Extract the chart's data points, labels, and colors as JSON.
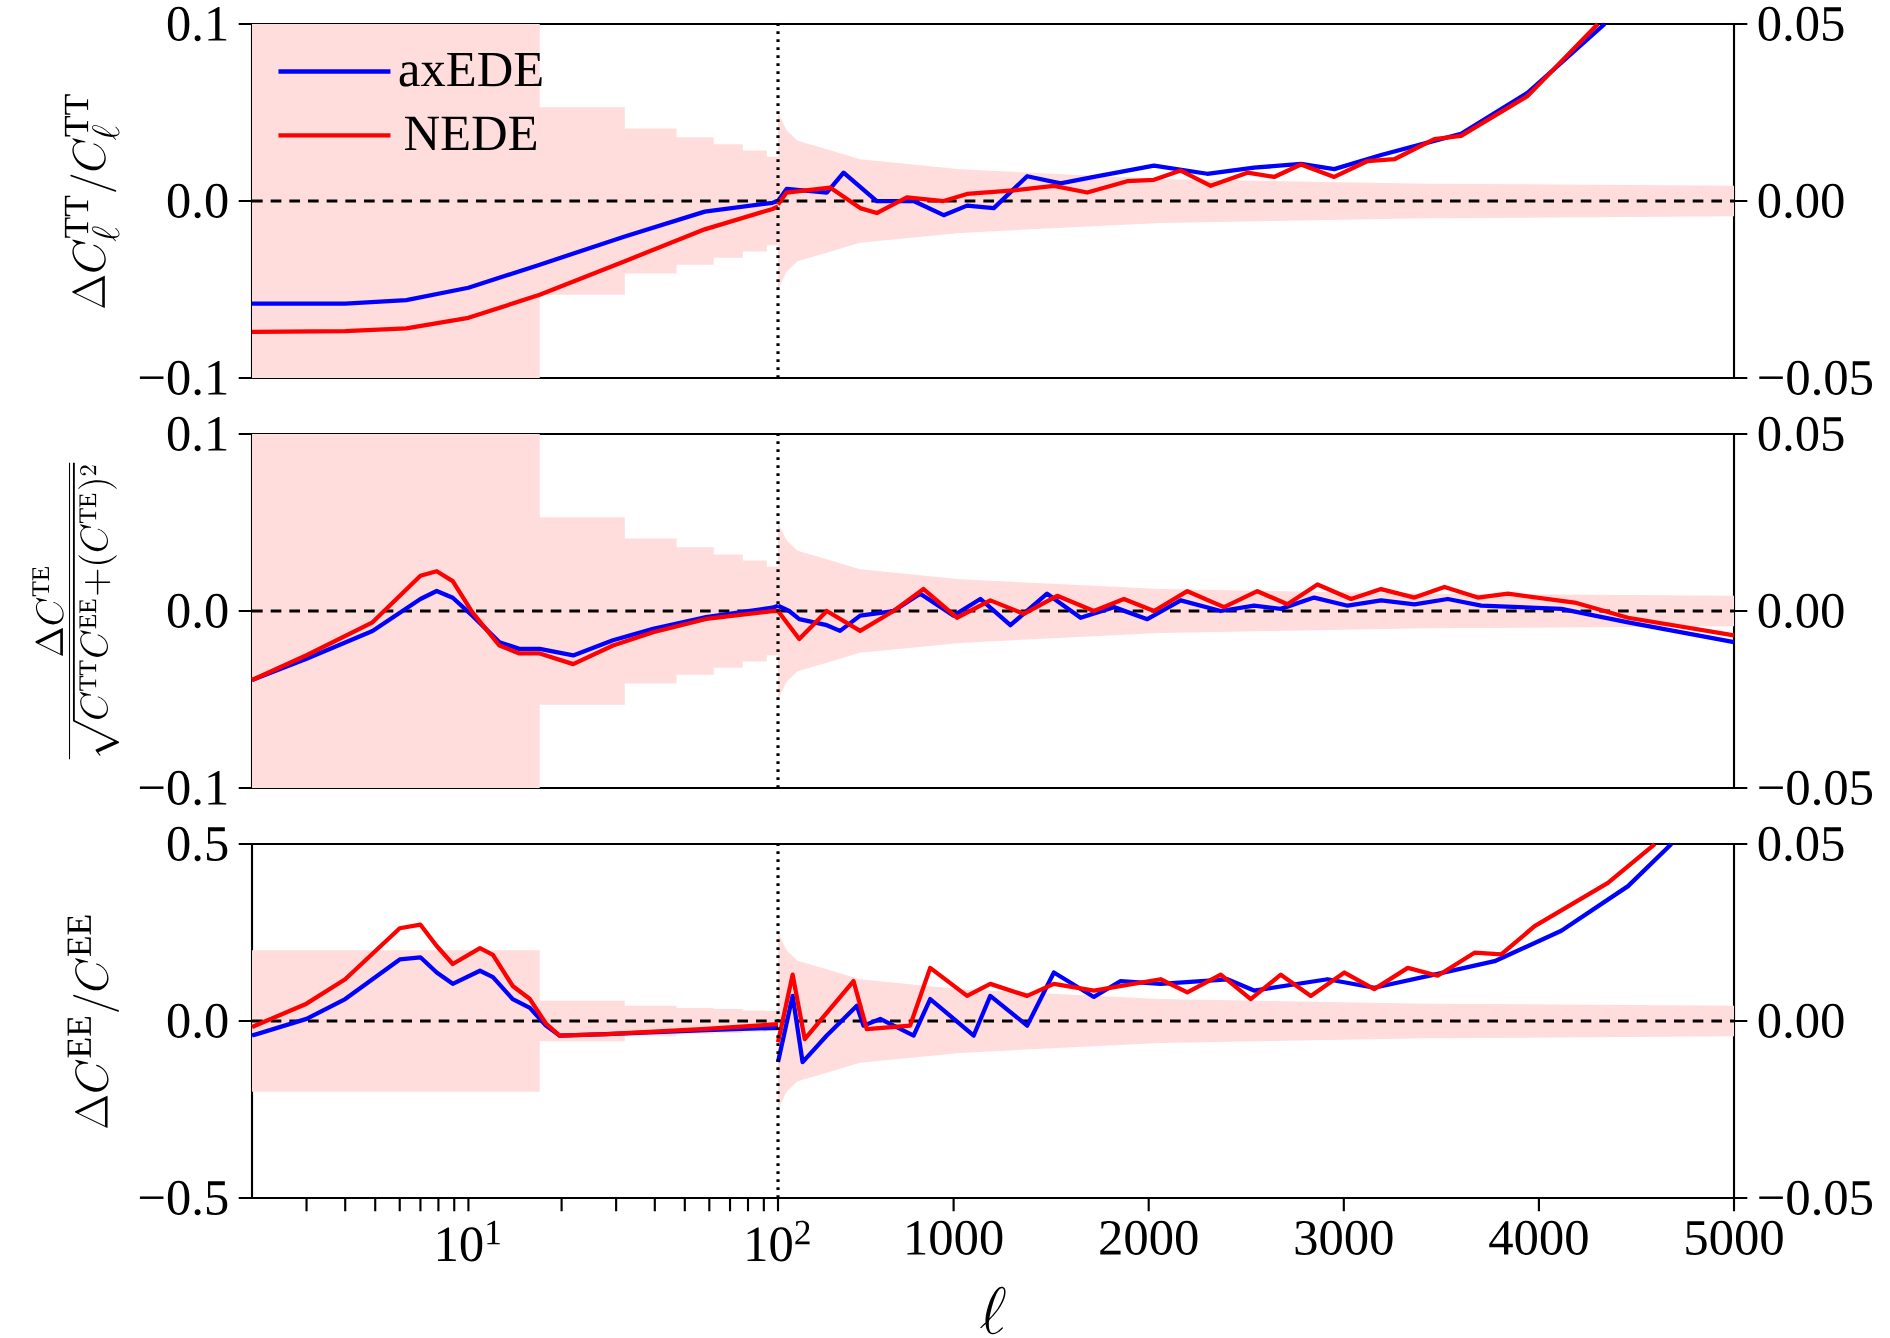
{
  "chart_data": [
    {
      "type": "line",
      "log": "x",
      "xlim": [
        2,
        100
      ],
      "ylim": [
        -0.1,
        0.1
      ],
      "yticks": [
        {
          "value": -0.1,
          "label": "−0.1"
        },
        {
          "value": 0,
          "label": "0.0"
        },
        {
          "value": 0.1,
          "label": "0.1"
        }
      ],
      "ylabel": "\\Delta C_\\ell^{\\mathrm{TT}}/C_\\ell^{\\mathrm{TT}}",
      "tick_labels": "y",
      "legend": "top left",
      "series": [
        {
          "color": "#000000",
          "line_style": "dashed",
          "x": [
            2,
            17,
            17,
            32,
            32,
            47,
            47,
            62,
            62,
            77,
            77,
            92,
            92,
            100
          ],
          "values": [
            0,
            0,
            0,
            0,
            0,
            0,
            0,
            0,
            0,
            0,
            0,
            0,
            0,
            0
          ],
          "lower": [
            -0.1,
            -0.1,
            -0.053,
            -0.053,
            -0.041,
            -0.041,
            -0.036,
            -0.036,
            -0.032,
            -0.032,
            -0.0285,
            -0.0285,
            -0.025,
            -0.025
          ],
          "upper": [
            0.1,
            0.1,
            0.053,
            0.053,
            0.041,
            0.041,
            0.036,
            0.036,
            0.032,
            0.032,
            0.0285,
            0.0285,
            0.025,
            0.025
          ]
        },
        {
          "name": "axEDE",
          "color": "#0000ff",
          "x": [
            2,
            4,
            6.3,
            10,
            17,
            32,
            58,
            96,
            100
          ],
          "values": [
            -0.058,
            -0.058,
            -0.056,
            -0.049,
            -0.036,
            -0.02,
            -0.006,
            -0.001,
            0
          ]
        },
        {
          "name": "NEDE",
          "color": "#ff0000",
          "x": [
            2,
            4,
            6.3,
            10,
            17,
            32,
            58,
            96,
            100
          ],
          "values": [
            -0.074,
            -0.0735,
            -0.072,
            -0.066,
            -0.053,
            -0.034,
            -0.016,
            -0.0045,
            -0.003
          ]
        }
      ]
    },
    {
      "type": "line",
      "xlim": [
        100,
        5000
      ],
      "y2lim": [
        -0.05,
        0.05
      ],
      "y2ticks": [
        {
          "value": -0.05,
          "label": "−0.05"
        },
        {
          "value": 0,
          "label": "0.00"
        },
        {
          "value": 0.05,
          "label": "0.05"
        }
      ],
      "tick_labels": "y",
      "ref_lines": [
        {
          "axis": "x",
          "value": 100,
          "line_style": "dotted",
          "color": "#000000"
        }
      ],
      "series": [
        {
          "axis": "y2",
          "color": "#000000",
          "line_style": "dashed",
          "x": [
            100,
            144,
            200,
            350,
            520,
            1034,
            2061,
            3430,
            5000
          ],
          "values": [
            0,
            0,
            0,
            0,
            0,
            0,
            0,
            0,
            0
          ],
          "lower": [
            -0.025,
            -0.02,
            -0.017,
            -0.0146,
            -0.0118,
            -0.009,
            -0.0062,
            -0.0049,
            -0.0043
          ],
          "upper": [
            0.025,
            0.02,
            0.017,
            0.0146,
            0.0118,
            0.009,
            0.0062,
            0.0049,
            0.0043
          ]
        },
        {
          "axis": "y2",
          "color": "#0000ff",
          "x": [
            100,
            144,
            350,
            436,
            606,
            795,
            949,
            1069,
            1206,
            1377,
            1548,
            1719,
            2027,
            2300,
            2540,
            2780,
            2951,
            3191,
            3430,
            3601,
            3943,
            4337
          ],
          "values": [
            0,
            0.0034,
            0.0024,
            0.008,
            0,
            0,
            -0.004,
            -0.0013,
            -0.002,
            0.007,
            0.005,
            0.0068,
            0.01,
            0.0077,
            0.0094,
            0.0105,
            0.009,
            0.013,
            0.0165,
            0.019,
            0.0306,
            0.05
          ]
        },
        {
          "axis": "y2",
          "color": "#ff0000",
          "x": [
            100,
            144,
            367,
            521,
            606,
            760,
            949,
            1069,
            1308,
            1514,
            1685,
            1890,
            2027,
            2164,
            2318,
            2506,
            2643,
            2780,
            2951,
            3122,
            3259,
            3464,
            3601,
            3943,
            4302
          ],
          "values": [
            -0.001,
            0.0024,
            0.0038,
            -0.002,
            -0.0034,
            0.001,
            0,
            0.002,
            0.003,
            0.0043,
            0.0024,
            0.0056,
            0.006,
            0.0086,
            0.0043,
            0.008,
            0.0068,
            0.0103,
            0.0068,
            0.0113,
            0.0118,
            0.0175,
            0.0184,
            0.0297,
            0.05
          ]
        }
      ]
    },
    {
      "type": "line",
      "log": "x",
      "xlim": [
        2,
        100
      ],
      "ylim": [
        -0.1,
        0.1
      ],
      "yticks": [
        {
          "value": -0.1,
          "label": "−0.1"
        },
        {
          "value": 0,
          "label": "0.0"
        },
        {
          "value": 0.1,
          "label": "0.1"
        }
      ],
      "ylabel": "\\frac{\\Delta C^{\\mathrm{TE}}}{\\sqrt{C^{\\mathrm{TT}}C^{\\mathrm{EE}}+(C^{\\mathrm{TE}})^2}}",
      "tick_labels": "y",
      "series": [
        {
          "color": "#000000",
          "line_style": "dashed",
          "x": [
            2,
            17,
            17,
            32,
            32,
            47,
            47,
            62,
            62,
            77,
            77,
            92,
            92,
            100
          ],
          "values": [
            0,
            0,
            0,
            0,
            0,
            0,
            0,
            0,
            0,
            0,
            0,
            0,
            0,
            0
          ],
          "lower": [
            -0.1,
            -0.1,
            -0.053,
            -0.053,
            -0.041,
            -0.041,
            -0.036,
            -0.036,
            -0.032,
            -0.032,
            -0.0285,
            -0.0285,
            -0.025,
            -0.025
          ],
          "upper": [
            0.1,
            0.1,
            0.053,
            0.053,
            0.041,
            0.041,
            0.036,
            0.036,
            0.032,
            0.032,
            0.0285,
            0.0285,
            0.025,
            0.025
          ]
        },
        {
          "color": "#0000ff",
          "x": [
            2,
            3,
            4.9,
            7,
            7.9,
            8.9,
            10.3,
            12.6,
            14.6,
            17,
            21.8,
            29.3,
            39.5,
            58.6,
            96,
            100
          ],
          "values": [
            -0.039,
            -0.027,
            -0.0113,
            0.0068,
            0.0113,
            0.0075,
            -0.0026,
            -0.0176,
            -0.0214,
            -0.0214,
            -0.0251,
            -0.0165,
            -0.0101,
            -0.0034,
            0.0019,
            0.003
          ]
        },
        {
          "color": "#ff0000",
          "x": [
            2,
            3,
            4.9,
            7,
            7.9,
            8.9,
            10.3,
            12.6,
            14.6,
            17,
            21.8,
            29.3,
            39.5,
            58.6,
            96,
            100
          ],
          "values": [
            -0.039,
            -0.025,
            -0.0064,
            0.0199,
            0.0225,
            0.0169,
            -0.0008,
            -0.0195,
            -0.024,
            -0.024,
            -0.03,
            -0.0195,
            -0.012,
            -0.0045,
            0,
            0
          ]
        }
      ]
    },
    {
      "type": "line",
      "xlim": [
        100,
        5000
      ],
      "y2lim": [
        -0.05,
        0.05
      ],
      "y2ticks": [
        {
          "value": -0.05,
          "label": "−0.05"
        },
        {
          "value": 0,
          "label": "0.00"
        },
        {
          "value": 0.05,
          "label": "0.05"
        }
      ],
      "tick_labels": "y",
      "ref_lines": [
        {
          "axis": "x",
          "value": 100,
          "line_style": "dotted",
          "color": "#000000"
        }
      ],
      "series": [
        {
          "axis": "y2",
          "color": "#000000",
          "line_style": "dashed",
          "x": [
            100,
            144,
            200,
            350,
            520,
            1034,
            2061,
            3430,
            5000
          ],
          "values": [
            0,
            0,
            0,
            0,
            0,
            0,
            0,
            0,
            0
          ],
          "lower": [
            -0.025,
            -0.02,
            -0.017,
            -0.0146,
            -0.0118,
            -0.009,
            -0.0062,
            -0.0049,
            -0.0043
          ],
          "upper": [
            0.025,
            0.02,
            0.017,
            0.0146,
            0.0118,
            0.009,
            0.0062,
            0.0049,
            0.0043
          ]
        },
        {
          "axis": "y2",
          "color": "#0000ff",
          "x": [
            100,
            157,
            209,
            350,
            418,
            521,
            692,
            829,
            1000,
            1137,
            1291,
            1479,
            1651,
            1822,
            1993,
            2164,
            2369,
            2540,
            2677,
            2848,
            3020,
            3191,
            3362,
            3533,
            3704,
            4115,
            4457,
            5000
          ],
          "values": [
            0.0015,
            0,
            -0.0023,
            -0.004,
            -0.0056,
            -0.0013,
            0,
            0.0049,
            -0.0013,
            0.0034,
            -0.004,
            0.0049,
            -0.0019,
            0.0011,
            -0.0023,
            0.003,
            0,
            0.0015,
            0.0006,
            0.0038,
            0.0015,
            0.003,
            0.0019,
            0.0034,
            0.0015,
            0.0006,
            -0.0032,
            -0.0088
          ]
        },
        {
          "axis": "y2",
          "color": "#ff0000",
          "x": [
            100,
            209,
            350,
            521,
            692,
            846,
            1017,
            1188,
            1360,
            1531,
            1719,
            1873,
            2027,
            2198,
            2386,
            2557,
            2711,
            2865,
            3037,
            3191,
            3362,
            3516,
            3687,
            3841,
            4183,
            4457,
            5000
          ],
          "values": [
            0,
            -0.0079,
            0,
            -0.0056,
            0,
            0.0062,
            -0.0019,
            0.003,
            -0.0008,
            0.0043,
            0,
            0.0034,
            0,
            0.0056,
            0.0011,
            0.0056,
            0.0019,
            0.0075,
            0.0034,
            0.0062,
            0.0038,
            0.0068,
            0.0038,
            0.0049,
            0.0024,
            -0.0019,
            -0.0069
          ]
        }
      ]
    },
    {
      "type": "line",
      "log": "x",
      "xlim": [
        2,
        100
      ],
      "ylim": [
        -0.5,
        0.5
      ],
      "yticks": [
        {
          "value": -0.5,
          "label": "−0.5"
        },
        {
          "value": 0,
          "label": "0.0"
        },
        {
          "value": 0.5,
          "label": "0.5"
        }
      ],
      "ylabel": "\\Delta C^{\\mathrm{EE}}/C^{\\mathrm{EE}}",
      "xticks": [
        {
          "value": 3,
          "label": null
        },
        {
          "value": 4,
          "label": null
        },
        {
          "value": 5,
          "label": null
        },
        {
          "value": 6,
          "label": null
        },
        {
          "value": 7,
          "label": null
        },
        {
          "value": 8,
          "label": null
        },
        {
          "value": 9,
          "label": null
        },
        {
          "value": 10,
          "label": "10$^{1}$"
        },
        {
          "value": 20,
          "label": null
        },
        {
          "value": 30,
          "label": null
        },
        {
          "value": 40,
          "label": null
        },
        {
          "value": 50,
          "label": null
        },
        {
          "value": 60,
          "label": null
        },
        {
          "value": 70,
          "label": null
        },
        {
          "value": 80,
          "label": null
        },
        {
          "value": 90,
          "label": null
        },
        {
          "value": 100,
          "label": "10$^{2}$"
        }
      ],
      "series": [
        {
          "color": "#000000",
          "line_style": "dashed",
          "x": [
            2,
            17,
            17,
            32,
            32,
            47,
            47,
            62,
            62,
            77,
            77,
            92,
            92,
            100
          ],
          "values": [
            0,
            0,
            0,
            0,
            0,
            0,
            0,
            0,
            0,
            0,
            0,
            0,
            0,
            0
          ],
          "lower": [
            -0.2,
            -0.2,
            -0.057,
            -0.057,
            -0.043,
            -0.043,
            -0.037,
            -0.037,
            -0.034,
            -0.034,
            -0.03,
            -0.03,
            -0.028,
            -0.028
          ],
          "upper": [
            0.2,
            0.2,
            0.057,
            0.057,
            0.043,
            0.043,
            0.037,
            0.037,
            0.034,
            0.034,
            0.03,
            0.03,
            0.028,
            0.028
          ]
        },
        {
          "color": "#0000ff",
          "x": [
            2,
            3,
            4,
            6,
            7,
            7.9,
            8.9,
            10.9,
            12,
            13.9,
            15.8,
            17.8,
            19.7,
            27.9,
            58.6,
            100
          ],
          "values": [
            -0.041,
            0.006,
            0.062,
            0.174,
            0.18,
            0.137,
            0.105,
            0.142,
            0.124,
            0.062,
            0.037,
            -0.013,
            -0.041,
            -0.037,
            -0.026,
            -0.019
          ]
        },
        {
          "color": "#ff0000",
          "x": [
            2,
            3,
            4,
            6,
            7,
            7.9,
            8.9,
            10.9,
            12,
            13.9,
            15.8,
            17.8,
            19.7,
            27.9,
            58.6,
            100
          ],
          "values": [
            -0.017,
            0.049,
            0.118,
            0.262,
            0.272,
            0.212,
            0.161,
            0.206,
            0.187,
            0.099,
            0.062,
            -0.007,
            -0.041,
            -0.037,
            -0.022,
            -0.009
          ]
        }
      ]
    },
    {
      "type": "line",
      "xlim": [
        100,
        5000
      ],
      "y2lim": [
        -0.05,
        0.05
      ],
      "y2ticks": [
        {
          "value": -0.05,
          "label": "−0.05"
        },
        {
          "value": 0,
          "label": "0.00"
        },
        {
          "value": 0.05,
          "label": "0.05"
        }
      ],
      "xticks": [
        1000,
        2000,
        3000,
        4000,
        5000
      ],
      "xlabel": "\\ell",
      "ref_lines": [
        {
          "axis": "x",
          "value": 100,
          "line_style": "dotted",
          "color": "#000000"
        }
      ],
      "series": [
        {
          "axis": "y2",
          "color": "#000000",
          "line_style": "dashed",
          "x": [
            100,
            144,
            200,
            350,
            520,
            1034,
            2061,
            3430,
            5000
          ],
          "values": [
            0,
            0,
            0,
            0,
            0,
            0,
            0,
            0,
            0
          ],
          "lower": [
            -0.025,
            -0.02,
            -0.017,
            -0.0146,
            -0.0118,
            -0.009,
            -0.0062,
            -0.0049,
            -0.0043
          ],
          "upper": [
            0.025,
            0.02,
            0.017,
            0.0146,
            0.0118,
            0.009,
            0.0062,
            0.0049,
            0.0043
          ]
        },
        {
          "axis": "y2",
          "color": "#0000ff",
          "x": [
            100,
            175,
            226,
            350,
            504,
            538,
            624,
            795,
            880,
            1103,
            1188,
            1377,
            1514,
            1719,
            1856,
            2061,
            2403,
            2540,
            2917,
            3156,
            3464,
            3773,
            4115,
            4457,
            4679
          ],
          "values": [
            -0.0116,
            0.0071,
            -0.0116,
            -0.0041,
            0.0043,
            -0.0013,
            0.0006,
            -0.0041,
            0.0062,
            -0.0041,
            0.0071,
            -0.0013,
            0.0137,
            0.0068,
            0.0113,
            0.0105,
            0.0118,
            0.0086,
            0.0118,
            0.0094,
            0.0131,
            0.0169,
            0.0255,
            0.0381,
            0.05
          ]
        },
        {
          "axis": "y2",
          "color": "#ff0000",
          "x": [
            100,
            175,
            237,
            487,
            555,
            777,
            880,
            1069,
            1188,
            1377,
            1514,
            1719,
            2061,
            2198,
            2369,
            2523,
            2677,
            2831,
            3003,
            3156,
            3328,
            3481,
            3670,
            3807,
            3978,
            4354,
            4594
          ],
          "values": [
            -0.006,
            0.0131,
            -0.0051,
            0.0113,
            -0.0023,
            -0.0013,
            0.015,
            0.0071,
            0.0105,
            0.0071,
            0.0105,
            0.0086,
            0.0118,
            0.0081,
            0.0131,
            0.0062,
            0.0131,
            0.0071,
            0.0137,
            0.009,
            0.015,
            0.0128,
            0.0193,
            0.0188,
            0.0268,
            0.039,
            0.05
          ]
        }
      ]
    }
  ]
}
